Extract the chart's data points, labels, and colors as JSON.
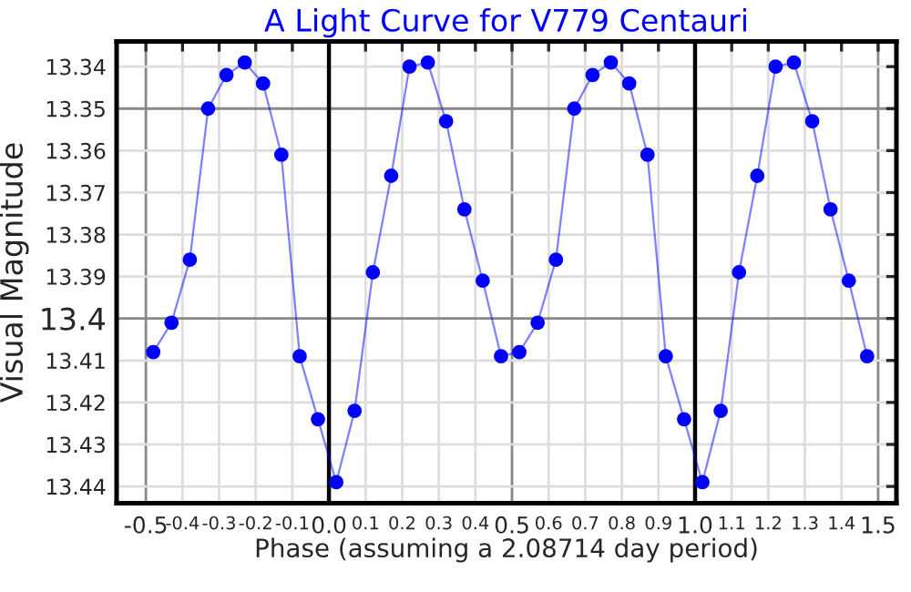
{
  "chart_data": {
    "type": "line",
    "title": "A Light Curve for V779 Centauri",
    "xlabel": "Phase (assuming a 2.08714 day period)",
    "ylabel": "Visual Magnitude",
    "x": [
      -0.48,
      -0.43,
      -0.38,
      -0.33,
      -0.28,
      -0.23,
      -0.18,
      -0.13,
      -0.08,
      -0.03,
      0.02,
      0.07,
      0.12,
      0.17,
      0.22,
      0.27,
      0.32,
      0.37,
      0.42,
      0.47,
      0.52,
      0.57,
      0.62,
      0.67,
      0.72,
      0.77,
      0.82,
      0.87,
      0.92,
      0.97,
      1.02,
      1.07,
      1.12,
      1.17,
      1.22,
      1.27,
      1.32,
      1.37,
      1.42,
      1.47
    ],
    "series": [
      {
        "color": "#0000ff",
        "values": [
          13.408,
          13.401,
          13.386,
          13.35,
          13.342,
          13.339,
          13.344,
          13.361,
          13.409,
          13.424,
          13.439,
          13.422,
          13.389,
          13.366,
          13.34,
          13.339,
          13.353,
          13.374,
          13.391,
          13.409,
          13.408,
          13.401,
          13.386,
          13.35,
          13.342,
          13.339,
          13.344,
          13.361,
          13.409,
          13.424,
          13.439,
          13.422,
          13.389,
          13.366,
          13.34,
          13.339,
          13.353,
          13.374,
          13.391,
          13.409
        ]
      }
    ],
    "xlim": [
      -0.58,
      1.55
    ],
    "ylim": [
      13.444,
      13.334
    ],
    "xticks": [
      -0.5,
      {
        "value": -0.4,
        "label": "-0.4"
      },
      {
        "value": -0.3,
        "label": "-0.3"
      },
      {
        "value": -0.2,
        "label": "-0.2"
      },
      {
        "value": -0.1,
        "label": "-0.1"
      },
      {
        "value": 0,
        "label": "0.0"
      },
      0.1,
      0.2,
      0.3,
      0.4,
      0.5,
      0.6,
      0.7,
      0.8,
      0.9,
      {
        "value": 1,
        "label": "1.0"
      },
      1.1,
      1.2,
      1.3,
      1.4,
      1.5
    ],
    "yticks": [
      13.34,
      13.35,
      13.36,
      13.37,
      13.38,
      13.39,
      13.4,
      13.41,
      13.42,
      13.43,
      13.44
    ],
    "grid": true,
    "marker": "circle",
    "line_style": "solid"
  }
}
